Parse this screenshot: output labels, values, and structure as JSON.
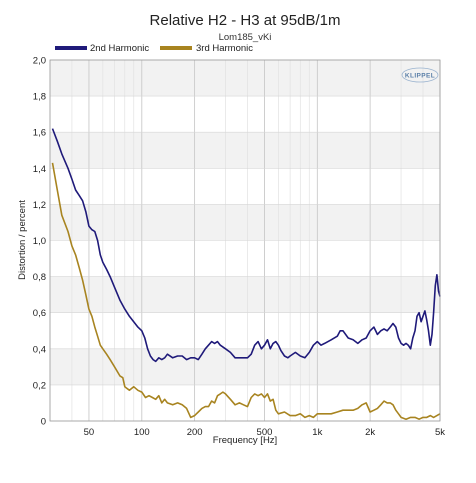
{
  "chart_data": {
    "type": "line",
    "title": "Relative H2 - H3 at 95dB/1m",
    "subtitle": "Lom185_vKi",
    "xlabel": "Frequency [Hz]",
    "ylabel": "Distortion / percent",
    "x_scale": "log",
    "xlim": [
      30,
      5000
    ],
    "ylim": [
      0,
      2.0
    ],
    "x_ticks": [
      50,
      100,
      200,
      500,
      1000,
      2000,
      5000
    ],
    "x_tick_labels": [
      "50",
      "100",
      "200",
      "500",
      "1k",
      "2k",
      "5k"
    ],
    "y_ticks": [
      0,
      0.2,
      0.4,
      0.6,
      0.8,
      1.0,
      1.2,
      1.4,
      1.6,
      1.8,
      2.0
    ],
    "y_tick_labels": [
      "0",
      "0,2",
      "0,4",
      "0,6",
      "0,8",
      "1,0",
      "1,2",
      "1,4",
      "1,6",
      "1,8",
      "2,0"
    ],
    "grid": true,
    "legend_position": "top-left",
    "logo": "KLIPPEL",
    "series": [
      {
        "name": "2nd Harmonic",
        "color": "#1f1a7a",
        "points": [
          [
            31,
            1.62
          ],
          [
            33,
            1.55
          ],
          [
            35,
            1.48
          ],
          [
            38,
            1.4
          ],
          [
            40,
            1.34
          ],
          [
            42,
            1.28
          ],
          [
            44,
            1.25
          ],
          [
            46,
            1.22
          ],
          [
            48,
            1.16
          ],
          [
            50,
            1.08
          ],
          [
            52,
            1.06
          ],
          [
            54,
            1.05
          ],
          [
            56,
            1.0
          ],
          [
            58,
            0.92
          ],
          [
            60,
            0.88
          ],
          [
            63,
            0.84
          ],
          [
            66,
            0.8
          ],
          [
            70,
            0.74
          ],
          [
            75,
            0.67
          ],
          [
            80,
            0.62
          ],
          [
            85,
            0.58
          ],
          [
            90,
            0.55
          ],
          [
            95,
            0.52
          ],
          [
            100,
            0.5
          ],
          [
            104,
            0.46
          ],
          [
            108,
            0.4
          ],
          [
            112,
            0.36
          ],
          [
            116,
            0.34
          ],
          [
            120,
            0.33
          ],
          [
            125,
            0.35
          ],
          [
            130,
            0.34
          ],
          [
            135,
            0.35
          ],
          [
            140,
            0.37
          ],
          [
            150,
            0.35
          ],
          [
            160,
            0.36
          ],
          [
            170,
            0.36
          ],
          [
            180,
            0.34
          ],
          [
            190,
            0.35
          ],
          [
            200,
            0.35
          ],
          [
            210,
            0.34
          ],
          [
            220,
            0.37
          ],
          [
            230,
            0.4
          ],
          [
            240,
            0.42
          ],
          [
            250,
            0.44
          ],
          [
            260,
            0.43
          ],
          [
            270,
            0.44
          ],
          [
            280,
            0.42
          ],
          [
            300,
            0.4
          ],
          [
            320,
            0.38
          ],
          [
            340,
            0.35
          ],
          [
            360,
            0.35
          ],
          [
            380,
            0.35
          ],
          [
            400,
            0.35
          ],
          [
            420,
            0.37
          ],
          [
            440,
            0.42
          ],
          [
            460,
            0.44
          ],
          [
            480,
            0.4
          ],
          [
            500,
            0.42
          ],
          [
            520,
            0.45
          ],
          [
            540,
            0.4
          ],
          [
            560,
            0.43
          ],
          [
            580,
            0.44
          ],
          [
            600,
            0.42
          ],
          [
            620,
            0.39
          ],
          [
            650,
            0.36
          ],
          [
            680,
            0.35
          ],
          [
            700,
            0.36
          ],
          [
            750,
            0.38
          ],
          [
            800,
            0.36
          ],
          [
            850,
            0.35
          ],
          [
            900,
            0.38
          ],
          [
            950,
            0.42
          ],
          [
            1000,
            0.44
          ],
          [
            1050,
            0.42
          ],
          [
            1100,
            0.43
          ],
          [
            1200,
            0.45
          ],
          [
            1300,
            0.47
          ],
          [
            1350,
            0.5
          ],
          [
            1400,
            0.5
          ],
          [
            1500,
            0.46
          ],
          [
            1600,
            0.45
          ],
          [
            1700,
            0.43
          ],
          [
            1800,
            0.45
          ],
          [
            1900,
            0.46
          ],
          [
            2000,
            0.5
          ],
          [
            2100,
            0.52
          ],
          [
            2200,
            0.48
          ],
          [
            2300,
            0.5
          ],
          [
            2400,
            0.51
          ],
          [
            2500,
            0.5
          ],
          [
            2600,
            0.52
          ],
          [
            2700,
            0.54
          ],
          [
            2800,
            0.52
          ],
          [
            2900,
            0.46
          ],
          [
            3000,
            0.43
          ],
          [
            3100,
            0.42
          ],
          [
            3200,
            0.43
          ],
          [
            3300,
            0.42
          ],
          [
            3400,
            0.4
          ],
          [
            3500,
            0.46
          ],
          [
            3600,
            0.5
          ],
          [
            3700,
            0.58
          ],
          [
            3800,
            0.6
          ],
          [
            3900,
            0.55
          ],
          [
            4000,
            0.58
          ],
          [
            4100,
            0.61
          ],
          [
            4200,
            0.56
          ],
          [
            4300,
            0.5
          ],
          [
            4400,
            0.42
          ],
          [
            4500,
            0.48
          ],
          [
            4600,
            0.6
          ],
          [
            4700,
            0.75
          ],
          [
            4800,
            0.81
          ],
          [
            4900,
            0.72
          ],
          [
            5000,
            0.69
          ]
        ]
      },
      {
        "name": "3rd Harmonic",
        "color": "#a88420",
        "points": [
          [
            31,
            1.43
          ],
          [
            33,
            1.28
          ],
          [
            35,
            1.14
          ],
          [
            38,
            1.05
          ],
          [
            40,
            0.97
          ],
          [
            42,
            0.92
          ],
          [
            44,
            0.85
          ],
          [
            46,
            0.78
          ],
          [
            48,
            0.7
          ],
          [
            50,
            0.62
          ],
          [
            52,
            0.58
          ],
          [
            54,
            0.52
          ],
          [
            56,
            0.47
          ],
          [
            58,
            0.42
          ],
          [
            60,
            0.4
          ],
          [
            63,
            0.37
          ],
          [
            66,
            0.34
          ],
          [
            70,
            0.3
          ],
          [
            75,
            0.25
          ],
          [
            78,
            0.24
          ],
          [
            80,
            0.19
          ],
          [
            85,
            0.17
          ],
          [
            90,
            0.19
          ],
          [
            95,
            0.17
          ],
          [
            100,
            0.16
          ],
          [
            105,
            0.13
          ],
          [
            110,
            0.14
          ],
          [
            115,
            0.13
          ],
          [
            120,
            0.12
          ],
          [
            125,
            0.14
          ],
          [
            130,
            0.1
          ],
          [
            135,
            0.12
          ],
          [
            140,
            0.1
          ],
          [
            150,
            0.09
          ],
          [
            160,
            0.1
          ],
          [
            170,
            0.09
          ],
          [
            180,
            0.07
          ],
          [
            190,
            0.02
          ],
          [
            200,
            0.03
          ],
          [
            210,
            0.05
          ],
          [
            220,
            0.07
          ],
          [
            230,
            0.08
          ],
          [
            240,
            0.08
          ],
          [
            250,
            0.11
          ],
          [
            260,
            0.1
          ],
          [
            270,
            0.14
          ],
          [
            280,
            0.15
          ],
          [
            290,
            0.16
          ],
          [
            300,
            0.15
          ],
          [
            320,
            0.12
          ],
          [
            340,
            0.09
          ],
          [
            360,
            0.1
          ],
          [
            380,
            0.09
          ],
          [
            400,
            0.08
          ],
          [
            420,
            0.13
          ],
          [
            440,
            0.15
          ],
          [
            460,
            0.14
          ],
          [
            480,
            0.15
          ],
          [
            500,
            0.13
          ],
          [
            520,
            0.15
          ],
          [
            540,
            0.11
          ],
          [
            560,
            0.12
          ],
          [
            580,
            0.06
          ],
          [
            600,
            0.04
          ],
          [
            650,
            0.05
          ],
          [
            700,
            0.03
          ],
          [
            750,
            0.03
          ],
          [
            800,
            0.04
          ],
          [
            850,
            0.02
          ],
          [
            900,
            0.03
          ],
          [
            950,
            0.02
          ],
          [
            1000,
            0.04
          ],
          [
            1100,
            0.04
          ],
          [
            1200,
            0.04
          ],
          [
            1300,
            0.05
          ],
          [
            1400,
            0.06
          ],
          [
            1500,
            0.06
          ],
          [
            1600,
            0.06
          ],
          [
            1700,
            0.07
          ],
          [
            1800,
            0.09
          ],
          [
            1900,
            0.1
          ],
          [
            2000,
            0.05
          ],
          [
            2100,
            0.06
          ],
          [
            2200,
            0.07
          ],
          [
            2300,
            0.09
          ],
          [
            2400,
            0.11
          ],
          [
            2500,
            0.1
          ],
          [
            2600,
            0.1
          ],
          [
            2700,
            0.09
          ],
          [
            2800,
            0.06
          ],
          [
            2900,
            0.04
          ],
          [
            3000,
            0.02
          ],
          [
            3200,
            0.01
          ],
          [
            3400,
            0.02
          ],
          [
            3600,
            0.02
          ],
          [
            3800,
            0.01
          ],
          [
            4000,
            0.02
          ],
          [
            4200,
            0.02
          ],
          [
            4400,
            0.03
          ],
          [
            4600,
            0.02
          ],
          [
            4800,
            0.03
          ],
          [
            5000,
            0.04
          ]
        ]
      }
    ]
  }
}
